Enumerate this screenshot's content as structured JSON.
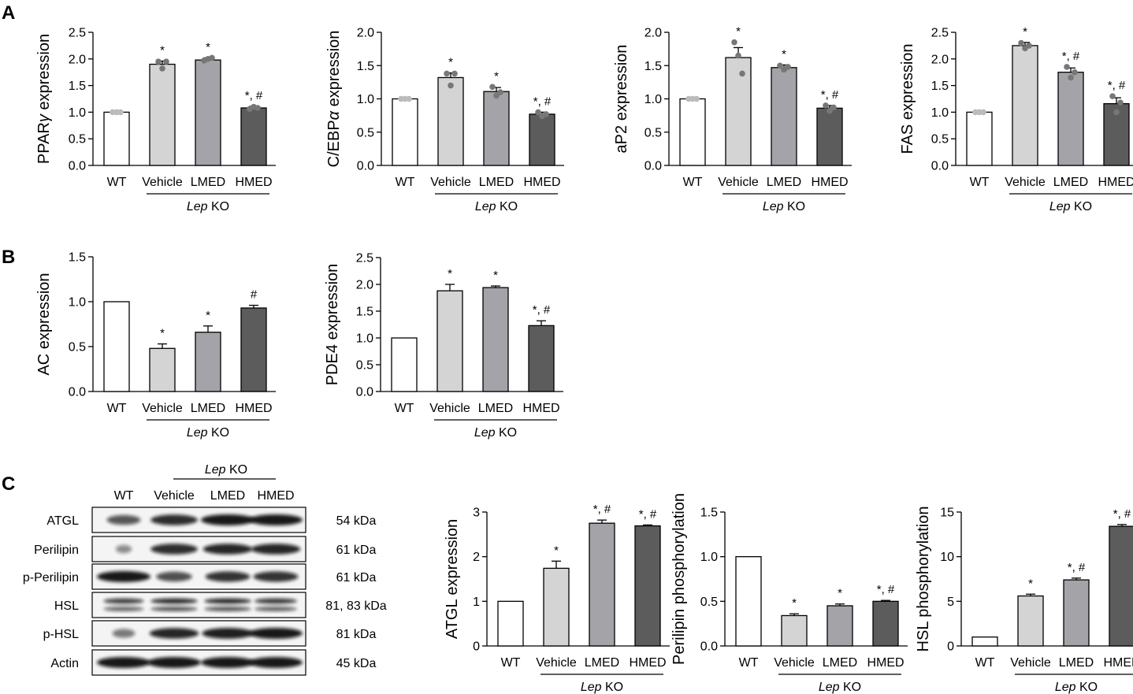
{
  "figure": {
    "panel_labels": [
      "A",
      "B",
      "C"
    ],
    "group_label_italic": "Lep",
    "group_label_rest": " KO"
  },
  "colors": {
    "WT": "#ffffff",
    "Vehicle": "#d4d4d4",
    "LMED": "#a3a3a8",
    "HMED": "#5c5c5c",
    "dots": "#777777"
  },
  "chart_data": [
    {
      "id": "ppar",
      "type": "bar",
      "ylabel_parts": [
        "PPAR",
        "γ",
        " expression"
      ],
      "categories": [
        "WT",
        "Vehicle",
        "LMED",
        "HMED"
      ],
      "values": [
        1.0,
        1.9,
        1.98,
        1.08
      ],
      "errors": [
        0,
        0.06,
        0.04,
        0.03
      ],
      "points": [
        [
          1,
          1,
          1
        ],
        [
          1.95,
          1.82,
          1.95
        ],
        [
          1.97,
          2.0,
          2.02
        ],
        [
          1.06,
          1.1,
          1.08
        ]
      ],
      "annotations": [
        "",
        "*",
        "*",
        "*, #"
      ],
      "ylim": [
        0,
        2.5
      ],
      "yticks": [
        0,
        0.5,
        1.0,
        1.5,
        2.0,
        2.5
      ],
      "decimals": 1
    },
    {
      "id": "cebp",
      "type": "bar",
      "ylabel_parts": [
        "C/EBP",
        "α",
        " expression"
      ],
      "categories": [
        "WT",
        "Vehicle",
        "LMED",
        "HMED"
      ],
      "values": [
        1.0,
        1.32,
        1.11,
        0.77
      ],
      "errors": [
        0,
        0.07,
        0.06,
        0.03
      ],
      "points": [
        [
          1,
          1,
          1
        ],
        [
          1.38,
          1.2,
          1.38
        ],
        [
          1.18,
          1.05,
          1.1
        ],
        [
          0.8,
          0.74,
          0.77
        ]
      ],
      "annotations": [
        "",
        "*",
        "*",
        "*, #"
      ],
      "ylim": [
        0,
        2.0
      ],
      "yticks": [
        0,
        0.5,
        1.0,
        1.5,
        2.0
      ],
      "decimals": 1
    },
    {
      "id": "ap2",
      "type": "bar",
      "ylabel_parts": [
        "aP2 expression"
      ],
      "categories": [
        "WT",
        "Vehicle",
        "LMED",
        "HMED"
      ],
      "values": [
        1.0,
        1.62,
        1.47,
        0.86
      ],
      "errors": [
        0,
        0.15,
        0.04,
        0.04
      ],
      "points": [
        [
          1,
          1,
          1
        ],
        [
          1.85,
          1.65,
          1.38
        ],
        [
          1.5,
          1.44,
          1.48
        ],
        [
          0.9,
          0.82,
          0.87
        ]
      ],
      "annotations": [
        "",
        "*",
        "*",
        "*, #"
      ],
      "ylim": [
        0,
        2.0
      ],
      "yticks": [
        0,
        0.5,
        1.0,
        1.5,
        2.0
      ],
      "decimals": 1
    },
    {
      "id": "fas",
      "type": "bar",
      "ylabel_parts": [
        "FAS expression"
      ],
      "categories": [
        "WT",
        "Vehicle",
        "LMED",
        "HMED"
      ],
      "values": [
        1.0,
        2.25,
        1.75,
        1.16
      ],
      "errors": [
        0,
        0.06,
        0.08,
        0.11
      ],
      "points": [
        [
          1,
          1,
          1
        ],
        [
          2.3,
          2.2,
          2.25
        ],
        [
          1.85,
          1.65,
          1.75
        ],
        [
          1.3,
          1.0,
          1.18
        ]
      ],
      "annotations": [
        "",
        "*",
        "*, #",
        "*, #"
      ],
      "ylim": [
        0,
        2.5
      ],
      "yticks": [
        0,
        0.5,
        1.0,
        1.5,
        2.0,
        2.5
      ],
      "decimals": 1
    },
    {
      "id": "ac",
      "type": "bar",
      "ylabel_parts": [
        "AC expression"
      ],
      "categories": [
        "WT",
        "Vehicle",
        "LMED",
        "HMED"
      ],
      "values": [
        1.0,
        0.48,
        0.66,
        0.93
      ],
      "errors": [
        0,
        0.05,
        0.07,
        0.03
      ],
      "points": [],
      "annotations": [
        "",
        "*",
        "*",
        "#"
      ],
      "ylim": [
        0,
        1.5
      ],
      "yticks": [
        0,
        0.5,
        1.0,
        1.5
      ],
      "decimals": 1
    },
    {
      "id": "pde4",
      "type": "bar",
      "ylabel_parts": [
        "PDE4 expression"
      ],
      "categories": [
        "WT",
        "Vehicle",
        "LMED",
        "HMED"
      ],
      "values": [
        1.0,
        1.88,
        1.94,
        1.23
      ],
      "errors": [
        0,
        0.12,
        0.03,
        0.09
      ],
      "points": [],
      "annotations": [
        "",
        "*",
        "*",
        "*, #"
      ],
      "ylim": [
        0,
        2.5
      ],
      "yticks": [
        0,
        0.5,
        1.0,
        1.5,
        2.0,
        2.5
      ],
      "decimals": 1
    },
    {
      "id": "atgl",
      "type": "bar",
      "ylabel_parts": [
        "ATGL expression"
      ],
      "categories": [
        "WT",
        "Vehicle",
        "LMED",
        "HMED"
      ],
      "values": [
        1.0,
        1.74,
        2.75,
        2.69
      ],
      "errors": [
        0,
        0.16,
        0.07,
        0.02
      ],
      "points": [],
      "annotations": [
        "",
        "*",
        "*, #",
        "*, #"
      ],
      "ylim": [
        0,
        3
      ],
      "yticks": [
        0,
        1,
        2,
        3
      ],
      "decimals": 0
    },
    {
      "id": "perilipin",
      "type": "bar",
      "ylabel_parts": [
        "Perilipin phosphorylation"
      ],
      "categories": [
        "WT",
        "Vehicle",
        "LMED",
        "HMED"
      ],
      "values": [
        1.0,
        0.34,
        0.45,
        0.5
      ],
      "errors": [
        0,
        0.02,
        0.02,
        0.01
      ],
      "points": [],
      "annotations": [
        "",
        "*",
        "*",
        "*, #"
      ],
      "ylim": [
        0,
        1.5
      ],
      "yticks": [
        0,
        0.5,
        1.0,
        1.5
      ],
      "decimals": 1
    },
    {
      "id": "hsl",
      "type": "bar",
      "ylabel_parts": [
        "HSL phosphorylation"
      ],
      "categories": [
        "WT",
        "Vehicle",
        "LMED",
        "HMED"
      ],
      "values": [
        1.0,
        5.6,
        7.4,
        13.4
      ],
      "errors": [
        0,
        0.2,
        0.2,
        0.2
      ],
      "points": [],
      "annotations": [
        "",
        "*",
        "*, #",
        "*, #"
      ],
      "ylim": [
        0,
        15
      ],
      "yticks": [
        0,
        5,
        10,
        15
      ],
      "decimals": 0
    }
  ],
  "blot": {
    "columns": [
      "WT",
      "Vehicle",
      "LMED",
      "HMED"
    ],
    "rows": [
      {
        "protein": "ATGL",
        "kda": "54 kDa"
      },
      {
        "protein": "Perilipin",
        "kda": "61 kDa"
      },
      {
        "protein": "p-Perilipin",
        "kda": "61 kDa"
      },
      {
        "protein": "HSL",
        "kda": "81, 83 kDa"
      },
      {
        "protein": "p-HSL",
        "kda": "81 kDa"
      },
      {
        "protein": "Actin",
        "kda": "45 kDa"
      }
    ]
  }
}
